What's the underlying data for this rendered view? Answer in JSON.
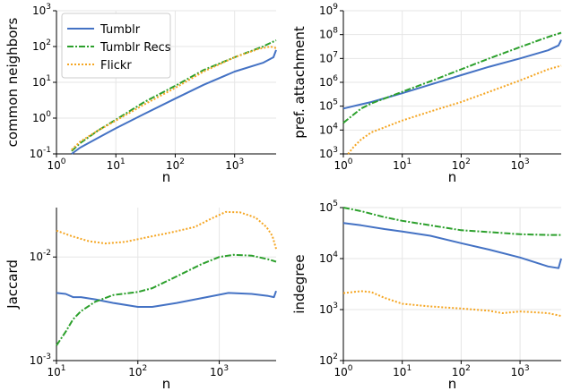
{
  "chart_data": [
    {
      "type": "line",
      "xlabel": "n",
      "ylabel": "common neighbors",
      "xscale": "log",
      "yscale": "log",
      "xlim": [
        1,
        5000
      ],
      "ylim": [
        0.1,
        1000
      ],
      "grid": true,
      "legend": "top-left",
      "xticks": [
        {
          "v": 1,
          "b": "10",
          "e": "0"
        },
        {
          "v": 10,
          "b": "10",
          "e": "1"
        },
        {
          "v": 100,
          "b": "10",
          "e": "2"
        },
        {
          "v": 1000,
          "b": "10",
          "e": "3"
        }
      ],
      "yticks": [
        {
          "v": 0.1,
          "b": "10",
          "e": "-1"
        },
        {
          "v": 1,
          "b": "10",
          "e": "0"
        },
        {
          "v": 10,
          "b": "10",
          "e": "1"
        },
        {
          "v": 100,
          "b": "10",
          "e": "2"
        },
        {
          "v": 1000,
          "b": "10",
          "e": "3"
        }
      ],
      "series": [
        {
          "name": "Tumblr",
          "points": [
            [
              1.8,
              0.1
            ],
            [
              2.5,
              0.15
            ],
            [
              5,
              0.28
            ],
            [
              10,
              0.52
            ],
            [
              30,
              1.3
            ],
            [
              100,
              3.5
            ],
            [
              300,
              8.5
            ],
            [
              1000,
              20
            ],
            [
              3000,
              35
            ],
            [
              4500,
              50
            ],
            [
              5000,
              80
            ]
          ]
        },
        {
          "name": "Tumblr Recs",
          "points": [
            [
              1.8,
              0.12
            ],
            [
              2.5,
              0.2
            ],
            [
              5,
              0.45
            ],
            [
              10,
              0.9
            ],
            [
              30,
              2.8
            ],
            [
              100,
              8
            ],
            [
              300,
              22
            ],
            [
              1000,
              50
            ],
            [
              3000,
              100
            ],
            [
              5000,
              150
            ]
          ]
        },
        {
          "name": "Flickr",
          "points": [
            [
              1.8,
              0.13
            ],
            [
              2.5,
              0.22
            ],
            [
              5,
              0.45
            ],
            [
              10,
              0.85
            ],
            [
              30,
              2.4
            ],
            [
              100,
              7
            ],
            [
              300,
              20
            ],
            [
              1000,
              50
            ],
            [
              2500,
              85
            ],
            [
              4000,
              100
            ],
            [
              5000,
              90
            ]
          ]
        }
      ]
    },
    {
      "type": "line",
      "xlabel": "n",
      "ylabel": "pref. attachment",
      "xscale": "log",
      "yscale": "log",
      "xlim": [
        1,
        5000
      ],
      "ylim": [
        1000,
        1000000000
      ],
      "grid": true,
      "xticks": [
        {
          "v": 1,
          "b": "10",
          "e": "0"
        },
        {
          "v": 10,
          "b": "10",
          "e": "1"
        },
        {
          "v": 100,
          "b": "10",
          "e": "2"
        },
        {
          "v": 1000,
          "b": "10",
          "e": "3"
        }
      ],
      "yticks": [
        {
          "v": 1000,
          "b": "10",
          "e": "3"
        },
        {
          "v": 10000,
          "b": "10",
          "e": "4"
        },
        {
          "v": 100000,
          "b": "10",
          "e": "5"
        },
        {
          "v": 1000000,
          "b": "10",
          "e": "6"
        },
        {
          "v": 10000000,
          "b": "10",
          "e": "7"
        },
        {
          "v": 100000000,
          "b": "10",
          "e": "8"
        },
        {
          "v": 1000000000,
          "b": "10",
          "e": "9"
        }
      ],
      "series": [
        {
          "name": "Tumblr",
          "points": [
            [
              1,
              80000
            ],
            [
              2,
              120000
            ],
            [
              3,
              150000
            ],
            [
              10,
              350000
            ],
            [
              30,
              800000
            ],
            [
              100,
              2000000
            ],
            [
              300,
              4500000
            ],
            [
              1000,
              10000000
            ],
            [
              3000,
              22000000
            ],
            [
              4500,
              35000000
            ],
            [
              5000,
              60000000
            ]
          ]
        },
        {
          "name": "Tumblr Recs",
          "points": [
            [
              1,
              20000
            ],
            [
              1.5,
              45000
            ],
            [
              2,
              80000
            ],
            [
              3,
              130000
            ],
            [
              10,
              400000
            ],
            [
              30,
              1100000
            ],
            [
              100,
              3500000
            ],
            [
              300,
              10000000
            ],
            [
              1000,
              30000000
            ],
            [
              3000,
              80000000
            ],
            [
              5000,
              120000000
            ]
          ]
        },
        {
          "name": "Flickr",
          "points": [
            [
              1.2,
              1000
            ],
            [
              1.5,
              2000
            ],
            [
              2,
              4000
            ],
            [
              3,
              8000
            ],
            [
              10,
              25000
            ],
            [
              30,
              60000
            ],
            [
              100,
              150000
            ],
            [
              300,
              400000
            ],
            [
              1000,
              1200000
            ],
            [
              3000,
              3500000
            ],
            [
              5000,
              5000000
            ]
          ]
        }
      ]
    },
    {
      "type": "line",
      "xlabel": "n",
      "ylabel": "Jaccard",
      "xscale": "log",
      "yscale": "log",
      "xlim": [
        10,
        5000
      ],
      "ylim": [
        0.001,
        0.03
      ],
      "grid": true,
      "xticks": [
        {
          "v": 10,
          "b": "10",
          "e": "1"
        },
        {
          "v": 100,
          "b": "10",
          "e": "2"
        },
        {
          "v": 1000,
          "b": "10",
          "e": "3"
        }
      ],
      "yticks": [
        {
          "v": 0.001,
          "b": "10",
          "e": "-3"
        },
        {
          "v": 0.01,
          "b": "10",
          "e": "-2"
        }
      ],
      "series": [
        {
          "name": "Tumblr",
          "points": [
            [
              10,
              0.0045
            ],
            [
              13,
              0.0044
            ],
            [
              16,
              0.0041
            ],
            [
              20,
              0.0041
            ],
            [
              30,
              0.0039
            ],
            [
              50,
              0.0036
            ],
            [
              100,
              0.0033
            ],
            [
              150,
              0.0033
            ],
            [
              300,
              0.0036
            ],
            [
              700,
              0.0041
            ],
            [
              1300,
              0.0045
            ],
            [
              2500,
              0.0044
            ],
            [
              4000,
              0.0042
            ],
            [
              4700,
              0.0041
            ],
            [
              5000,
              0.0047
            ]
          ]
        },
        {
          "name": "Tumblr Recs",
          "points": [
            [
              10,
              0.0014
            ],
            [
              13,
              0.0019
            ],
            [
              16,
              0.0025
            ],
            [
              20,
              0.003
            ],
            [
              30,
              0.0037
            ],
            [
              50,
              0.0043
            ],
            [
              100,
              0.0046
            ],
            [
              150,
              0.005
            ],
            [
              300,
              0.0065
            ],
            [
              600,
              0.0085
            ],
            [
              1000,
              0.01
            ],
            [
              1500,
              0.0105
            ],
            [
              2500,
              0.0103
            ],
            [
              4000,
              0.0095
            ],
            [
              5000,
              0.009
            ]
          ]
        },
        {
          "name": "Flickr",
          "points": [
            [
              10,
              0.018
            ],
            [
              15,
              0.016
            ],
            [
              25,
              0.0142
            ],
            [
              40,
              0.0135
            ],
            [
              70,
              0.014
            ],
            [
              130,
              0.0155
            ],
            [
              250,
              0.0172
            ],
            [
              500,
              0.0195
            ],
            [
              800,
              0.0235
            ],
            [
              1200,
              0.0272
            ],
            [
              1800,
              0.027
            ],
            [
              2800,
              0.024
            ],
            [
              3800,
              0.0195
            ],
            [
              4500,
              0.016
            ],
            [
              5000,
              0.012
            ]
          ]
        }
      ]
    },
    {
      "type": "line",
      "xlabel": "n",
      "ylabel": "indegree",
      "xscale": "log",
      "yscale": "log",
      "xlim": [
        1,
        5000
      ],
      "ylim": [
        100,
        100000
      ],
      "grid": true,
      "xticks": [
        {
          "v": 1,
          "b": "10",
          "e": "0"
        },
        {
          "v": 10,
          "b": "10",
          "e": "1"
        },
        {
          "v": 100,
          "b": "10",
          "e": "2"
        },
        {
          "v": 1000,
          "b": "10",
          "e": "3"
        }
      ],
      "yticks": [
        {
          "v": 100,
          "b": "10",
          "e": "2"
        },
        {
          "v": 1000,
          "b": "10",
          "e": "3"
        },
        {
          "v": 10000,
          "b": "10",
          "e": "4"
        },
        {
          "v": 100000,
          "b": "10",
          "e": "5"
        }
      ],
      "series": [
        {
          "name": "Tumblr",
          "points": [
            [
              1,
              50000
            ],
            [
              2,
              45000
            ],
            [
              5,
              38000
            ],
            [
              10,
              34000
            ],
            [
              30,
              28000
            ],
            [
              100,
              20000
            ],
            [
              300,
              15000
            ],
            [
              1000,
              10500
            ],
            [
              3000,
              7000
            ],
            [
              4500,
              6500
            ],
            [
              5000,
              10000
            ]
          ]
        },
        {
          "name": "Tumblr Recs",
          "points": [
            [
              1,
              100000
            ],
            [
              2,
              85000
            ],
            [
              5,
              65000
            ],
            [
              10,
              55000
            ],
            [
              30,
              45000
            ],
            [
              100,
              36000
            ],
            [
              300,
              33000
            ],
            [
              1000,
              30000
            ],
            [
              3000,
              29000
            ],
            [
              5000,
              29000
            ]
          ]
        },
        {
          "name": "Flickr",
          "points": [
            [
              1,
              2100
            ],
            [
              2,
              2300
            ],
            [
              3,
              2200
            ],
            [
              5,
              1700
            ],
            [
              10,
              1300
            ],
            [
              30,
              1150
            ],
            [
              100,
              1050
            ],
            [
              300,
              950
            ],
            [
              500,
              850
            ],
            [
              1000,
              920
            ],
            [
              3000,
              850
            ],
            [
              5000,
              750
            ]
          ]
        }
      ]
    }
  ],
  "style": {
    "colors": {
      "Tumblr": "#4472c4",
      "Tumblr Recs": "#2ca02c",
      "Flickr": "#f5a623"
    },
    "dash": {
      "Tumblr": "",
      "Tumblr Recs": "7,2,2,2",
      "Flickr": "2,2"
    }
  }
}
